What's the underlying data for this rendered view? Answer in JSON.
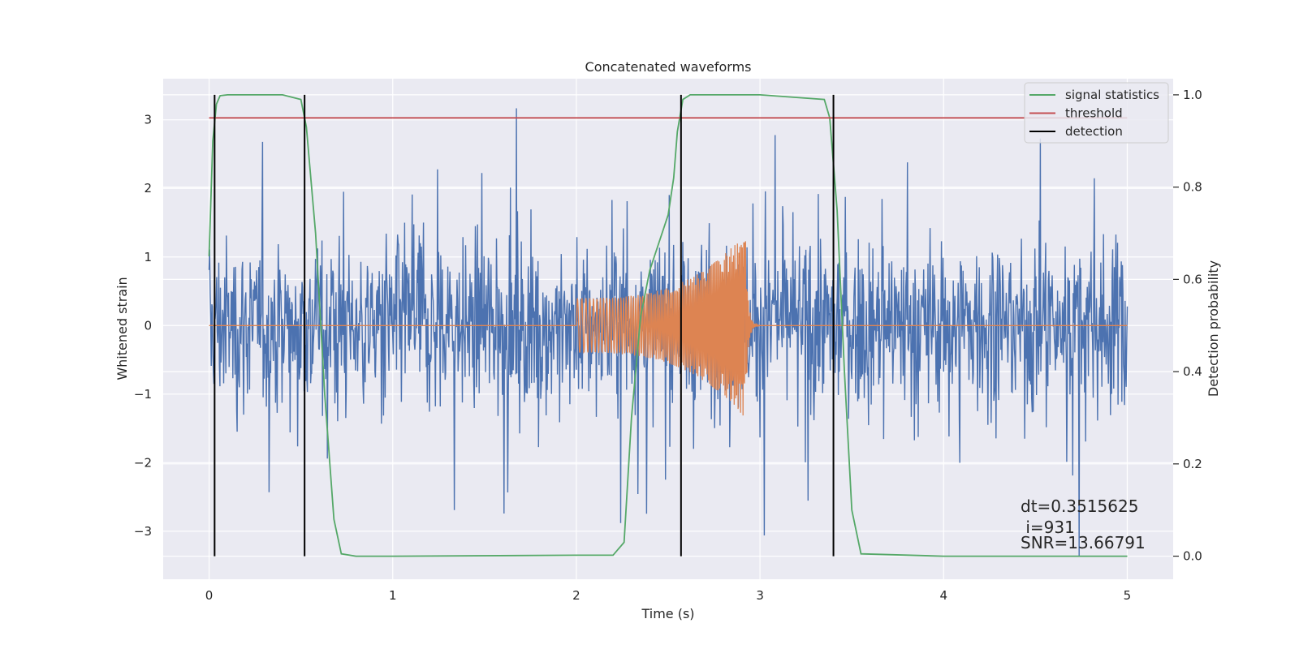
{
  "chart_data": {
    "type": "line",
    "title": "Concatenated waveforms",
    "xlabel": "Time (s)",
    "ylabel_left": "Whitened strain",
    "ylabel_right": "Detection probability",
    "xlim": [
      -0.25,
      5.25
    ],
    "ylim_left": [
      -3.7,
      3.6
    ],
    "ylim_right": [
      -0.05,
      1.035
    ],
    "x_ticks": [
      0,
      1,
      2,
      3,
      4,
      5
    ],
    "y_left_ticks": [
      -3,
      -2,
      -1,
      0,
      1,
      2,
      3
    ],
    "y_right_ticks": [
      0.0,
      0.2,
      0.4,
      0.6,
      0.8,
      1.0
    ],
    "grid": true,
    "legend_position": "top-right",
    "series": [
      {
        "name": "",
        "description_axis": "left",
        "color": "#4c72b0",
        "kind": "noise",
        "x_range": [
          0,
          5
        ],
        "band_rms": 0.85,
        "extremes": {
          "max": 3.3,
          "min": -3.6
        }
      },
      {
        "name": "",
        "axis": "left",
        "color": "#dd8452",
        "kind": "chirp",
        "x_range": [
          0,
          5
        ],
        "start": 2.0,
        "merger": 2.92,
        "ringdown_end": 3.0,
        "start_amplitude": 0.4,
        "peak_amplitude": 1.35
      },
      {
        "name": "signal statistics",
        "axis": "right",
        "color": "#55a868",
        "x": [
          0,
          0.02,
          0.04,
          0.06,
          0.1,
          0.2,
          0.4,
          0.5,
          0.53,
          0.58,
          0.63,
          0.68,
          0.72,
          0.8,
          1.0,
          2.0,
          2.2,
          2.26,
          2.3,
          2.35,
          2.4,
          2.45,
          2.5,
          2.53,
          2.55,
          2.58,
          2.62,
          2.7,
          3.0,
          3.35,
          3.38,
          3.42,
          3.46,
          3.5,
          3.55,
          4.0,
          5.0
        ],
        "y": [
          0.65,
          0.9,
          0.98,
          0.998,
          1.0,
          1.0,
          1.0,
          0.99,
          0.93,
          0.7,
          0.35,
          0.08,
          0.005,
          0.0,
          0.0,
          0.002,
          0.002,
          0.03,
          0.3,
          0.52,
          0.62,
          0.68,
          0.74,
          0.82,
          0.92,
          0.99,
          1.0,
          1.0,
          1.0,
          0.99,
          0.95,
          0.75,
          0.4,
          0.1,
          0.005,
          0.0,
          0.0
        ]
      },
      {
        "name": "threshold",
        "axis": "right",
        "color": "#c44e52",
        "x": [
          0,
          5
        ],
        "y": [
          0.95,
          0.95
        ]
      },
      {
        "name": "detection",
        "axis": "right",
        "color": "#000000",
        "x_lines": [
          0.03,
          0.52,
          2.57,
          3.4
        ]
      }
    ],
    "annotations": [
      "dt=0.3515625",
      " i=931",
      "SNR=13.66791"
    ]
  },
  "colors": {
    "figure_bg": "#ffffff",
    "axes_bg": "#eaeaf2",
    "grid": "#ffffff"
  }
}
